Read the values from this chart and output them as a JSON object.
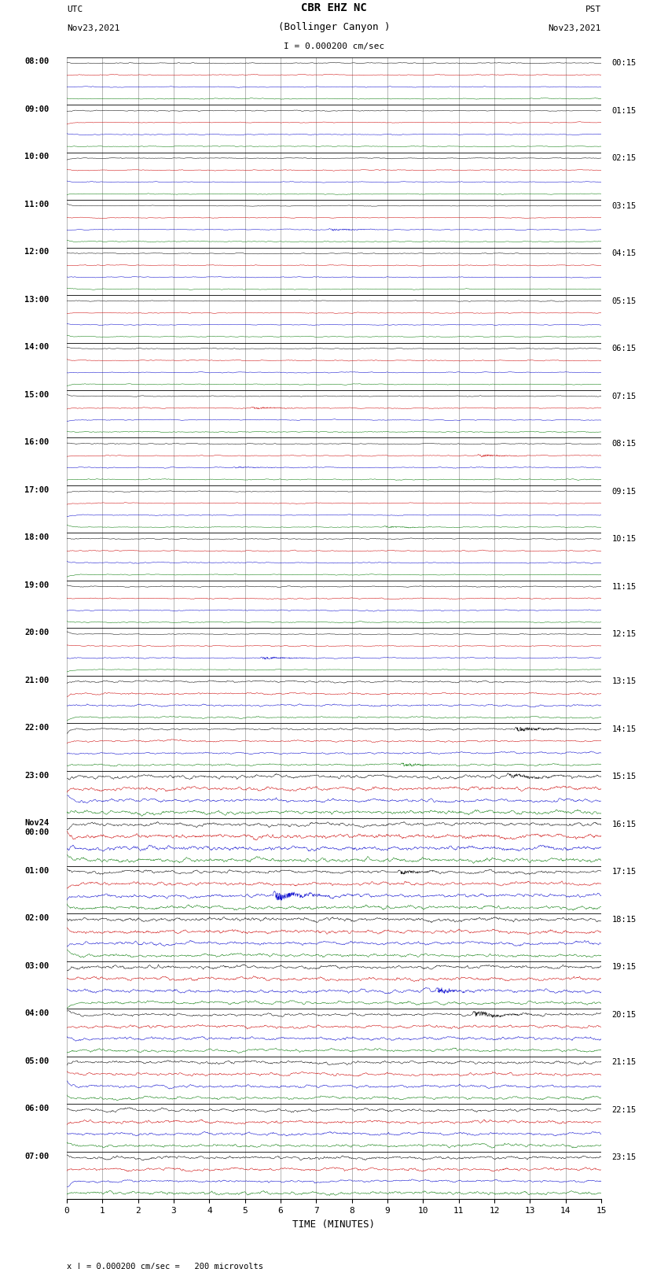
{
  "title_line1": "CBR EHZ NC",
  "title_line2": "(Bollinger Canyon )",
  "scale_text": "I = 0.000200 cm/sec",
  "bottom_text": "x | = 0.000200 cm/sec =   200 microvolts",
  "utc_label": "UTC",
  "utc_date": "Nov23,2021",
  "pst_label": "PST",
  "pst_date": "Nov23,2021",
  "xlabel": "TIME (MINUTES)",
  "xlim": [
    0,
    15
  ],
  "xticks": [
    0,
    1,
    2,
    3,
    4,
    5,
    6,
    7,
    8,
    9,
    10,
    11,
    12,
    13,
    14,
    15
  ],
  "bg_color": "#ffffff",
  "trace_colors": [
    "#000000",
    "#cc0000",
    "#0000cc",
    "#007700"
  ],
  "utc_hour_labels": [
    "08:00",
    "09:00",
    "10:00",
    "11:00",
    "12:00",
    "13:00",
    "14:00",
    "15:00",
    "16:00",
    "17:00",
    "18:00",
    "19:00",
    "20:00",
    "21:00",
    "22:00",
    "23:00",
    "Nov24\n00:00",
    "01:00",
    "02:00",
    "03:00",
    "04:00",
    "05:00",
    "06:00",
    "07:00"
  ],
  "pst_hour_labels": [
    "00:15",
    "01:15",
    "02:15",
    "03:15",
    "04:15",
    "05:15",
    "06:15",
    "07:15",
    "08:15",
    "09:15",
    "10:15",
    "11:15",
    "12:15",
    "13:15",
    "14:15",
    "15:15",
    "16:15",
    "17:15",
    "18:15",
    "19:15",
    "20:15",
    "21:15",
    "22:15",
    "23:15"
  ],
  "n_hours": 24,
  "traces_per_hour": 4,
  "grid_color": "#999999"
}
